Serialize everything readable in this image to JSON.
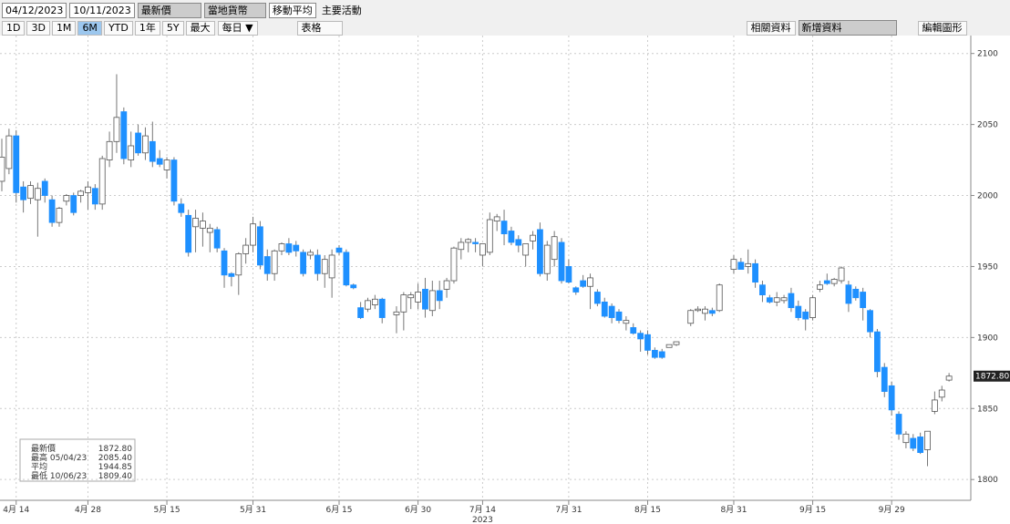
{
  "toolbar": {
    "start_date": "04/12/2023",
    "end_date": "10/11/2023",
    "field": "最新價",
    "currency": "當地貨幣",
    "moving_avg": "移動平均",
    "events": "主要活動",
    "periods": [
      "1D",
      "3D",
      "1M",
      "6M",
      "YTD",
      "1年",
      "5Y",
      "最大"
    ],
    "frequency": "每日 ▼",
    "table": "表格",
    "related": "相關資料",
    "add_data": "新增資料",
    "edit_chart": "編輯圖形"
  },
  "chart_data": {
    "type": "candlestick",
    "year_label": "2023",
    "color_up": "#ffffff",
    "color_down": "#1e90ff",
    "grid": true,
    "ylim": [
      1786,
      2112
    ],
    "yticks": [
      1800,
      1850,
      1900,
      1950,
      2000,
      2050,
      2100
    ],
    "last_label": {
      "value": 1872.8,
      "label": "1872.80"
    },
    "legend_box": [
      {
        "label": "最新價",
        "value": "1872.80"
      },
      {
        "label": "最高 05/04/23",
        "value": "2085.40"
      },
      {
        "label": "平均",
        "value": "1944.85"
      },
      {
        "label": "最低 10/06/23",
        "value": "1809.40"
      }
    ],
    "categories": [
      null,
      null,
      "4月 14",
      null,
      null,
      null,
      null,
      null,
      null,
      null,
      null,
      null,
      "4月 28",
      null,
      null,
      null,
      null,
      null,
      null,
      null,
      null,
      null,
      null,
      "5月 15",
      null,
      null,
      null,
      null,
      null,
      null,
      null,
      null,
      null,
      null,
      null,
      "5月 31",
      null,
      null,
      null,
      null,
      null,
      null,
      null,
      null,
      null,
      null,
      null,
      "6月 15",
      null,
      null,
      null,
      null,
      null,
      null,
      null,
      null,
      null,
      null,
      "6月 30",
      null,
      null,
      null,
      null,
      null,
      null,
      null,
      null,
      "7月 14",
      null,
      null,
      null,
      null,
      null,
      null,
      null,
      null,
      null,
      null,
      null,
      "7月 31",
      null,
      null,
      null,
      null,
      null,
      null,
      null,
      null,
      null,
      null,
      "8月 15",
      null,
      null,
      null,
      null,
      null,
      null,
      null,
      null,
      null,
      null,
      null,
      "8月 31",
      null,
      null,
      null,
      null,
      null,
      null,
      null,
      null,
      null,
      null,
      "9月 15",
      null,
      null,
      null,
      null,
      null,
      null,
      null,
      null,
      null,
      null,
      "9月 29",
      null,
      null,
      null,
      null,
      null,
      null,
      null,
      null
    ],
    "open": [
      2010,
      2019,
      2042,
      2006,
      1998,
      1997,
      2010,
      1997,
      1981,
      1996,
      2000,
      2000,
      2002,
      2005,
      1994,
      2025,
      2038,
      2059,
      2025,
      2044,
      2030,
      2038,
      2026,
      2018,
      2025,
      1994,
      1986,
      1978,
      1977,
      1974,
      1976,
      1961,
      1945,
      1944,
      1959,
      1965,
      1978,
      1957,
      1945,
      1961,
      1966,
      1965,
      1960,
      1958,
      1958,
      1945,
      1942,
      1963,
      1960,
      1937,
      1921,
      1920,
      1923,
      1927,
      null,
      1916,
      1918,
      1928,
      1925,
      1934,
      1919,
      1933,
      1934,
      1940,
      1962,
      1967,
      1967,
      1958,
      1960,
      1982,
      1982,
      1975,
      1969,
      1958,
      1968,
      1976,
      1945,
      1955,
      1967,
      1950,
      1935,
      1940,
      1936,
      1932,
      1925,
      1922,
      1918,
      1910,
      1907,
      1903,
      1902,
      1891,
      1890,
      1893,
      1895,
      null,
      1910,
      1919,
      1917,
      1919,
      1919,
      null,
      1948,
      1953,
      1950,
      1952,
      1937,
      1928,
      1925,
      1926,
      1931,
      1922,
      1918,
      1914,
      1934,
      1940,
      1938,
      1940,
      1937,
      1934,
      1932,
      1919,
      1904,
      1879,
      1866,
      1846,
      1826,
      1829,
      1830,
      1821,
      1848,
      1858,
      1870
    ],
    "high": [
      2040,
      2047,
      2046,
      2010,
      2010,
      2009,
      2012,
      2000,
      1992,
      2001,
      2002,
      2004,
      2010,
      2008,
      2028,
      2045,
      2085.4,
      2062,
      2045,
      2050,
      2048,
      2052,
      2032,
      2027,
      2027,
      1998,
      1990,
      1990,
      1988,
      1980,
      1978,
      1963,
      1946,
      1960,
      1970,
      1985,
      1982,
      1962,
      1962,
      1967,
      1970,
      1968,
      1962,
      1962,
      1962,
      1958,
      1962,
      1965,
      1962,
      1938,
      1925,
      1928,
      1930,
      1928,
      null,
      1922,
      1932,
      1932,
      1938,
      1942,
      1940,
      1940,
      1942,
      1964,
      1970,
      1970,
      1970,
      1966,
      1988,
      1987,
      1990,
      1978,
      1972,
      1966,
      1975,
      1981,
      1968,
      1975,
      1970,
      1955,
      1936,
      1944,
      1945,
      1934,
      1928,
      1924,
      1920,
      1915,
      1910,
      1905,
      1905,
      1893,
      1892,
      1895,
      1897,
      null,
      1920,
      1922,
      1922,
      1921,
      1938,
      null,
      1958,
      1956,
      1962,
      1955,
      1940,
      1930,
      1932,
      1930,
      1935,
      1926,
      1920,
      1930,
      1940,
      1945,
      1942,
      1950,
      1940,
      1936,
      1935,
      1920,
      1906,
      1882,
      1869,
      1848,
      1834,
      1832,
      1833,
      1834,
      1862,
      1866,
      1875
    ],
    "low": [
      2003,
      2015,
      1995,
      1988,
      1994,
      1971,
      1995,
      1978,
      1978,
      1993,
      1986,
      1995,
      1990,
      1990,
      1990,
      2020,
      2030,
      2022,
      2020,
      2028,
      2025,
      2020,
      2020,
      2012,
      1993,
      1985,
      1957,
      1960,
      1964,
      1960,
      1960,
      1935,
      1936,
      1930,
      1952,
      1960,
      1948,
      1940,
      1940,
      1958,
      1958,
      1957,
      1943,
      1955,
      1940,
      1935,
      1928,
      1958,
      1936,
      1934,
      1913,
      1918,
      1920,
      1910,
      null,
      1903,
      1905,
      1920,
      1920,
      1914,
      1915,
      1920,
      1928,
      1938,
      1955,
      1960,
      1960,
      1950,
      1958,
      1975,
      1965,
      1965,
      1960,
      1950,
      1962,
      1943,
      1940,
      1950,
      1938,
      1938,
      1930,
      1935,
      1920,
      1922,
      1914,
      1910,
      1910,
      1905,
      1902,
      1890,
      1888,
      1885,
      1885,
      1893,
      1894,
      null,
      1908,
      1918,
      1912,
      1915,
      1918,
      null,
      1945,
      1948,
      1945,
      1935,
      1925,
      1924,
      1922,
      1924,
      1918,
      1912,
      1905,
      1912,
      1932,
      1937,
      1936,
      1938,
      1918,
      1926,
      1912,
      1900,
      1872,
      1858,
      1845,
      1828,
      1822,
      1820,
      1818,
      1809.4,
      1846,
      1855,
      1869
    ],
    "close": [
      2027,
      2042,
      2002,
      1997,
      2007,
      2005,
      2000,
      1981,
      1991,
      2000,
      1988,
      2003,
      2006,
      1994,
      2026,
      2038,
      2055,
      2026,
      2035,
      2030,
      2042,
      2024,
      2022,
      2025,
      1996,
      1988,
      1960,
      1984,
      1982,
      1977,
      1963,
      1944,
      1943,
      1959,
      1965,
      1980,
      1951,
      1945,
      1961,
      1966,
      1960,
      1961,
      1945,
      1960,
      1945,
      1955,
      1958,
      1960,
      1937,
      1935,
      1914,
      1926,
      1927,
      1914,
      null,
      1918,
      1930,
      1930,
      1932,
      1920,
      1933,
      1926,
      1940,
      1963,
      1967,
      1969,
      1966,
      1966,
      1983,
      1985,
      1973,
      1967,
      1965,
      1966,
      1972,
      1945,
      1965,
      1971,
      1940,
      1939,
      1932,
      1936,
      1942,
      1924,
      1915,
      1914,
      1912,
      1912,
      1903,
      1899,
      1891,
      1886,
      1886,
      1895,
      1897,
      null,
      1919,
      1920,
      1920,
      1917,
      1937,
      null,
      1955,
      1948,
      1952,
      1939,
      1930,
      1925,
      1928,
      1928,
      1921,
      1914,
      1913,
      1928,
      1937,
      1938,
      1941,
      1949,
      1924,
      1928,
      1921,
      1904,
      1876,
      1862,
      1849,
      1832,
      1832,
      1822,
      1819,
      1834,
      1856,
      1863,
      1872.8
    ]
  }
}
